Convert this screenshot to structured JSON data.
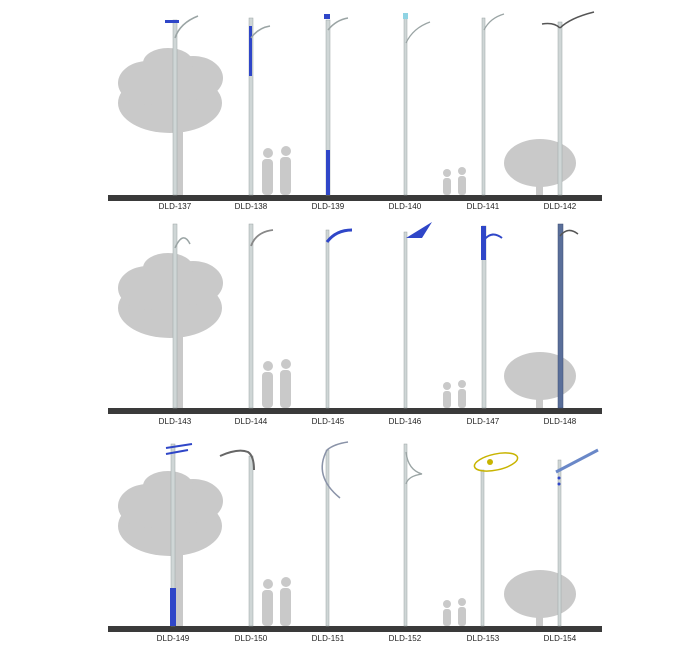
{
  "rows": [
    {
      "labels": [
        "DLD-137",
        "DLD-138",
        "DLD-139",
        "DLD-140",
        "DLD-141",
        "DLD-142"
      ]
    },
    {
      "labels": [
        "DLD-143",
        "DLD-144",
        "DLD-145",
        "DLD-146",
        "DLD-147",
        "DLD-148"
      ]
    },
    {
      "labels": [
        "DLD-149",
        "DLD-150",
        "DLD-151",
        "DLD-152",
        "DLD-153",
        "DLD-154"
      ]
    }
  ],
  "colors": {
    "pole": "#cfd6d6",
    "pole_edge": "#9aa4a4",
    "accent_blue": "#2f46c8",
    "ground": "#3a3a3a",
    "silhouette": "#c9c9c9",
    "lamp_yellow": "#c8b400"
  }
}
